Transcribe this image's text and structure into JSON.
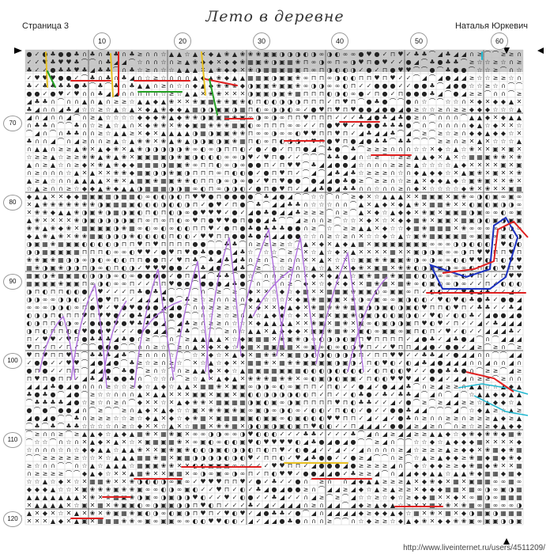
{
  "header": {
    "page_label": "Страница 3",
    "title": "Лето в деревне",
    "author": "Наталья Юркевич"
  },
  "column_numbers": [
    "10",
    "20",
    "30",
    "40",
    "50",
    "60"
  ],
  "row_numbers": [
    "70",
    "80",
    "90",
    "100",
    "110",
    "120"
  ],
  "footer": {
    "url": "http://www.liveinternet.ru/users/4511209/"
  },
  "symbols": [
    "♥",
    "✓",
    "●",
    "♣",
    "◢",
    "⌒",
    "∩",
    "≥",
    "☆",
    "▲",
    "◆",
    "✕",
    "❀",
    "▦",
    "▣",
    "◑",
    "∞",
    "◐",
    "⊓"
  ],
  "colors": {
    "grid_line": "#bbbbbb",
    "major_grid_line": "#666666",
    "symbol": "#222222",
    "header_band": "#c8c8c8",
    "outline_red": "#e02020",
    "outline_blue": "#1a2fbf",
    "outline_green": "#22a022",
    "outline_yellow": "#e8c020",
    "outline_cyan": "#20b8d0",
    "outline_purple": "#b070e0"
  }
}
